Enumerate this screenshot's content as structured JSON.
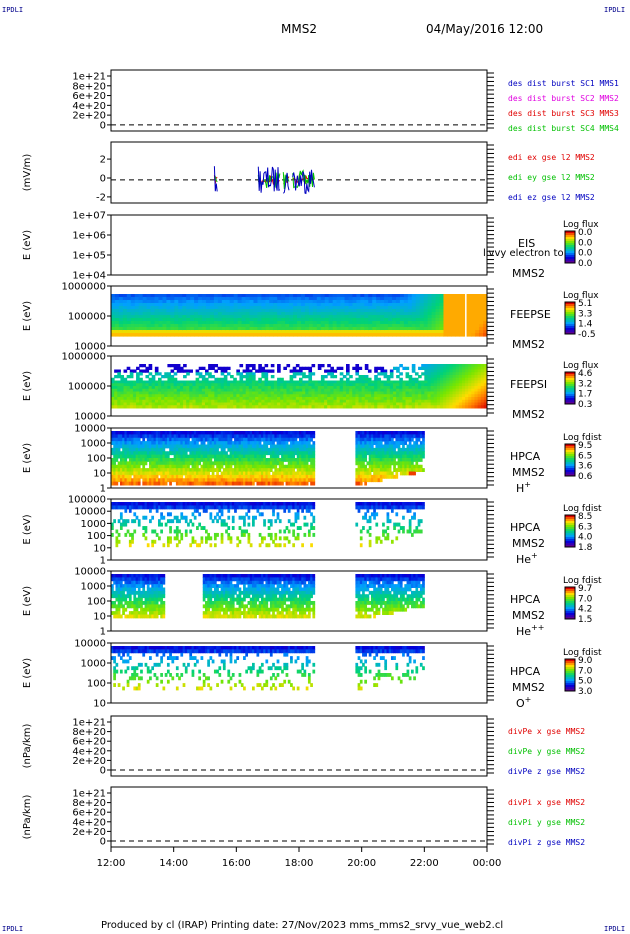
{
  "corners": {
    "tl": "IPDLI",
    "tr": "IPDLI",
    "bl": "IPDLI",
    "br": "IPDLI"
  },
  "header": {
    "spacecraft": "MMS2",
    "datetime": "04/May/2016 12:00"
  },
  "footer": {
    "text": "Produced by cl (IRAP)   Printing date: 27/Nov/2023   mms_mms2_srvy_vue_web2.cl"
  },
  "colors": {
    "panel_frame": "#000000",
    "dashed_zero": "#000000",
    "red": "#e00000",
    "magenta": "#e000e0",
    "green": "#00c000",
    "blue": "#0000c0"
  },
  "chart_data": [
    {
      "type": "line",
      "id": "dist",
      "yticks": [
        "1e+21",
        "8e+20",
        "6e+20",
        "4e+20",
        "2e+20",
        "0"
      ],
      "series": [
        {
          "name": "des dist burst SC1 MMS1",
          "color": "#0000c0"
        },
        {
          "name": "des dist burst SC2 MMS2",
          "color": "#e000e0"
        },
        {
          "name": "des dist burst SC3 MMS3",
          "color": "#e00000"
        },
        {
          "name": "des dist burst SC4 MMS4",
          "color": "#00c000"
        }
      ]
    },
    {
      "type": "line",
      "id": "edi",
      "ylabel": "(mV/m)",
      "yticks": [
        "2",
        "0",
        "-2"
      ],
      "series": [
        {
          "name": "edi ex gse l2 MMS2",
          "color": "#e00000"
        },
        {
          "name": "edi ey gse l2 MMS2",
          "color": "#00c000"
        },
        {
          "name": "edi ez gse l2 MMS2",
          "color": "#0000c0"
        }
      ]
    },
    {
      "type": "heatmap",
      "id": "eis",
      "ylabel": "E (eV)",
      "yticks": [
        "1e+07",
        "1e+06",
        "1e+05",
        "1e+04"
      ],
      "instrument": "EIS",
      "sc": "MMS2",
      "extra": "livvy electron to",
      "cbar_title": "Log flux",
      "cbar_ticks": [
        "0.0",
        "0.0",
        "0.0",
        "0.0"
      ]
    },
    {
      "type": "heatmap",
      "id": "feepse",
      "ylabel": "E (eV)",
      "yticks": [
        "1000000",
        "100000",
        "10000"
      ],
      "instrument": "FEEPSE",
      "sc": "MMS2",
      "cbar_title": "Log flux",
      "cbar_ticks": [
        "5.1",
        "3.3",
        "1.4",
        "-0.5"
      ]
    },
    {
      "type": "heatmap",
      "id": "feepsi",
      "ylabel": "E (eV)",
      "yticks": [
        "1000000",
        "100000",
        "10000"
      ],
      "instrument": "FEEPSI",
      "sc": "MMS2",
      "cbar_title": "Log flux",
      "cbar_ticks": [
        "4.6",
        "3.2",
        "1.7",
        "0.3"
      ]
    },
    {
      "type": "heatmap",
      "id": "hpca_h",
      "ylabel": "E (eV)",
      "yticks": [
        "10000",
        "1000",
        "100",
        "10",
        "1"
      ],
      "instrument": "HPCA",
      "sc": "MMS2",
      "species": "H",
      "charge": "+",
      "cbar_title": "Log fdist",
      "cbar_ticks": [
        "9.5",
        "6.5",
        "3.6",
        "0.6"
      ]
    },
    {
      "type": "heatmap",
      "id": "hpca_he",
      "ylabel": "E (eV)",
      "yticks": [
        "100000",
        "10000",
        "1000",
        "100",
        "10",
        "1"
      ],
      "instrument": "HPCA",
      "sc": "MMS2",
      "species": "He",
      "charge": "+",
      "cbar_title": "Log fdist",
      "cbar_ticks": [
        "8.5",
        "6.3",
        "4.0",
        "1.8"
      ]
    },
    {
      "type": "heatmap",
      "id": "hpca_hepp",
      "ylabel": "E (eV)",
      "yticks": [
        "10000",
        "1000",
        "100",
        "10",
        "1"
      ],
      "instrument": "HPCA",
      "sc": "MMS2",
      "species": "He",
      "charge": "++",
      "cbar_title": "Log fdist",
      "cbar_ticks": [
        "9.7",
        "7.0",
        "4.2",
        "1.5"
      ]
    },
    {
      "type": "heatmap",
      "id": "hpca_o",
      "ylabel": "E (eV)",
      "yticks": [
        "10000",
        "1000",
        "100",
        "10"
      ],
      "instrument": "HPCA",
      "sc": "MMS2",
      "species": "O",
      "charge": "+",
      "cbar_title": "Log fdist",
      "cbar_ticks": [
        "9.0",
        "7.0",
        "5.0",
        "3.0"
      ]
    },
    {
      "type": "line",
      "id": "divpe",
      "ylabel": "(nPa/km)",
      "yticks": [
        "1e+21",
        "8e+20",
        "6e+20",
        "4e+20",
        "2e+20",
        "0"
      ],
      "series": [
        {
          "name": "divPe x gse MMS2",
          "color": "#e00000"
        },
        {
          "name": "divPe y gse MMS2",
          "color": "#00c000"
        },
        {
          "name": "divPe z gse MMS2",
          "color": "#0000c0"
        }
      ]
    },
    {
      "type": "line",
      "id": "divpi",
      "ylabel": "(nPa/km)",
      "yticks": [
        "1e+21",
        "8e+20",
        "6e+20",
        "4e+20",
        "2e+20",
        "0"
      ],
      "series": [
        {
          "name": "divPi x gse MMS2",
          "color": "#e00000"
        },
        {
          "name": "divPi y gse MMS2",
          "color": "#00c000"
        },
        {
          "name": "divPi z gse MMS2",
          "color": "#0000c0"
        }
      ]
    }
  ],
  "x_axis": {
    "ticks": [
      "12:00",
      "14:00",
      "16:00",
      "18:00",
      "20:00",
      "22:00",
      "00:00"
    ]
  }
}
